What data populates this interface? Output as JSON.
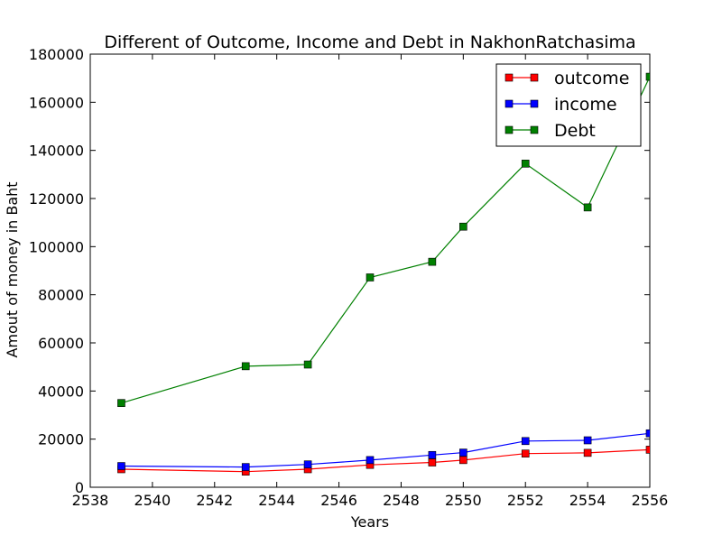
{
  "chart_data": {
    "type": "line",
    "title": "Different of Outcome, Income and Debt in NakhonRatchasima",
    "xlabel": "Years",
    "ylabel": "Amout of money in Baht",
    "xlim": [
      2538,
      2556
    ],
    "ylim": [
      0,
      180000
    ],
    "xticks": [
      2538,
      2540,
      2542,
      2544,
      2546,
      2548,
      2550,
      2552,
      2554,
      2556
    ],
    "yticks": [
      0,
      20000,
      40000,
      60000,
      80000,
      100000,
      120000,
      140000,
      160000,
      180000
    ],
    "grid": false,
    "legend_position": "top-right",
    "x": [
      2539,
      2543,
      2545,
      2547,
      2549,
      2550,
      2552,
      2554,
      2556
    ],
    "series": [
      {
        "name": "outcome",
        "color": "#ff0000",
        "values": [
          7500,
          6500,
          7500,
          9300,
          10300,
          11300,
          14000,
          14300,
          15600
        ]
      },
      {
        "name": "income",
        "color": "#0000ff",
        "values": [
          8800,
          8400,
          9500,
          11300,
          13400,
          14400,
          19200,
          19500,
          22400
        ]
      },
      {
        "name": "Debt",
        "color": "#008000",
        "values": [
          35000,
          50300,
          51000,
          87200,
          93700,
          108300,
          134500,
          116300,
          170600
        ]
      }
    ]
  }
}
